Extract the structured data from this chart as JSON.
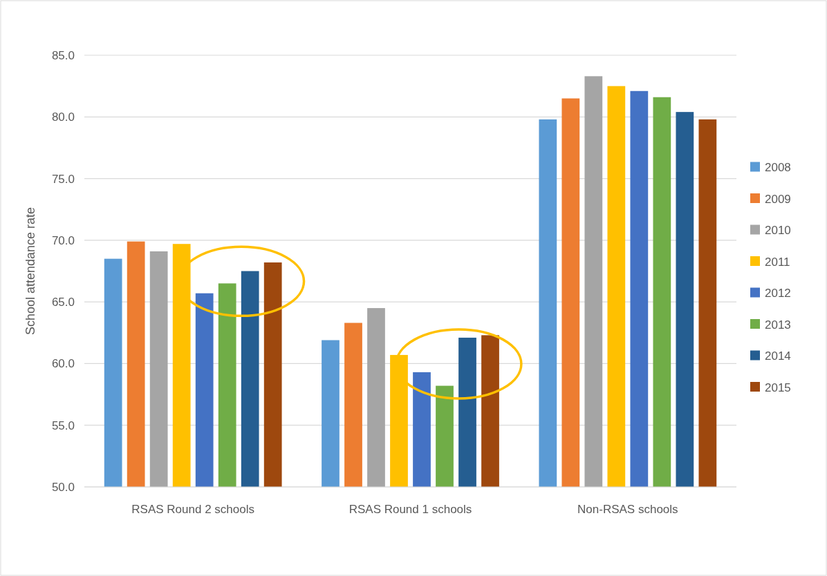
{
  "chart_data": {
    "type": "bar",
    "ylabel": "School attendance rate",
    "categories": [
      "RSAS Round 2 schools",
      "RSAS Round 1 schools",
      "Non-RSAS schools"
    ],
    "series": [
      {
        "name": "2008",
        "color": "#5b9bd5",
        "values": [
          68.5,
          61.9,
          79.8
        ]
      },
      {
        "name": "2009",
        "color": "#ed7d31",
        "values": [
          69.9,
          63.3,
          81.5
        ]
      },
      {
        "name": "2010",
        "color": "#a5a5a5",
        "values": [
          69.1,
          64.5,
          83.3
        ]
      },
      {
        "name": "2011",
        "color": "#ffc000",
        "values": [
          69.7,
          60.7,
          82.5
        ]
      },
      {
        "name": "2012",
        "color": "#4472c4",
        "values": [
          65.7,
          59.3,
          82.1
        ]
      },
      {
        "name": "2013",
        "color": "#70ad47",
        "values": [
          66.5,
          58.2,
          81.6
        ]
      },
      {
        "name": "2014",
        "color": "#255e91",
        "values": [
          67.5,
          62.1,
          80.4
        ]
      },
      {
        "name": "2015",
        "color": "#9e480e",
        "values": [
          68.2,
          62.3,
          79.8
        ]
      }
    ],
    "ylim": [
      50,
      85
    ],
    "yticks": [
      {
        "value": 50,
        "label": "50.0"
      },
      {
        "value": 55,
        "label": "55.0"
      },
      {
        "value": 60,
        "label": "60.0"
      },
      {
        "value": 65,
        "label": "65.0"
      },
      {
        "value": 70,
        "label": "70.0"
      },
      {
        "value": 75,
        "label": "75.0"
      },
      {
        "value": 80,
        "label": "80.0"
      },
      {
        "value": 85,
        "label": "85.0"
      }
    ],
    "grid": "y",
    "legend": "right"
  }
}
